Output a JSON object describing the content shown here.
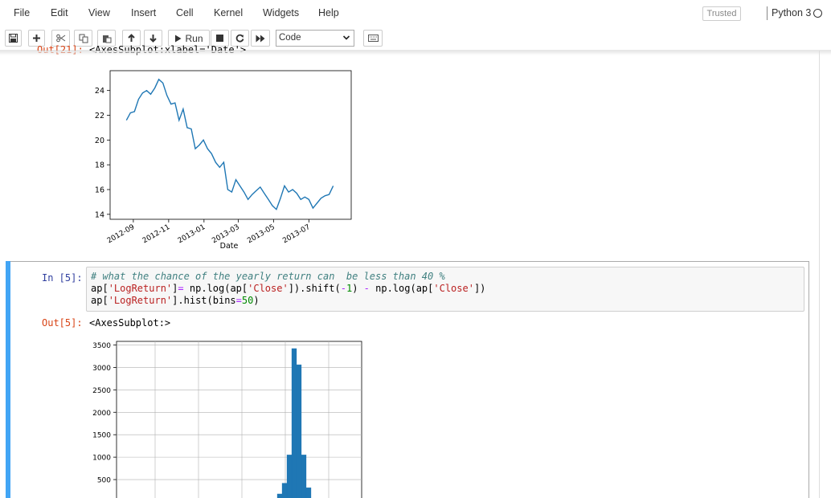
{
  "menubar": {
    "items": [
      "File",
      "Edit",
      "View",
      "Insert",
      "Cell",
      "Kernel",
      "Widgets",
      "Help"
    ],
    "trusted_label": "Trusted",
    "kernel_name": "Python 3"
  },
  "toolbar": {
    "run_label": "Run",
    "cell_type": "Code",
    "buttons": [
      "save-icon",
      "plus-icon",
      "cut-icon",
      "copy-icon",
      "paste-icon",
      "arrow-up-icon",
      "arrow-down-icon",
      "run-icon",
      "stop-icon",
      "restart-icon",
      "fast-forward-icon",
      "keyboard-icon"
    ]
  },
  "cells": {
    "out21": {
      "prompt": "Out[21]:",
      "text": "<AxesSubplot:xlabel='Date'>"
    },
    "in5": {
      "prompt": "In [5]:",
      "code": [
        "# what the chance of the yearly return can  be less than 40 %",
        "ap['LogReturn']= np.log(ap['Close']).shift(-1) - np.log(ap['Close'])",
        "ap['LogReturn'].hist(bins=50)"
      ]
    },
    "out5": {
      "prompt": "Out[5]:",
      "text": "<AxesSubplot:>"
    }
  },
  "chart_data": [
    {
      "type": "line",
      "xlabel": "Date",
      "ylabel": "",
      "title": "",
      "xticks": [
        "2012-09",
        "2012-11",
        "2013-01",
        "2013-03",
        "2013-05",
        "2013-07"
      ],
      "yticks": [
        14,
        16,
        18,
        20,
        22,
        24
      ],
      "ylim": [
        13.6,
        25.6
      ],
      "grid": false,
      "color": "#1f77b4",
      "x": [
        "2012-08-20",
        "2012-08-27",
        "2012-09-03",
        "2012-09-10",
        "2012-09-17",
        "2012-09-24",
        "2012-10-01",
        "2012-10-08",
        "2012-10-15",
        "2012-10-22",
        "2012-10-29",
        "2012-11-05",
        "2012-11-12",
        "2012-11-19",
        "2012-11-26",
        "2012-12-03",
        "2012-12-10",
        "2012-12-17",
        "2012-12-24",
        "2012-12-31",
        "2013-01-07",
        "2013-01-14",
        "2013-01-21",
        "2013-01-28",
        "2013-02-04",
        "2013-02-11",
        "2013-02-18",
        "2013-02-25",
        "2013-03-04",
        "2013-03-11",
        "2013-03-18",
        "2013-03-25",
        "2013-04-01",
        "2013-04-08",
        "2013-04-15",
        "2013-04-22",
        "2013-04-29",
        "2013-05-06",
        "2013-05-13",
        "2013-05-20",
        "2013-05-27",
        "2013-06-03",
        "2013-06-10",
        "2013-06-17",
        "2013-06-24",
        "2013-07-01",
        "2013-07-08",
        "2013-07-15",
        "2013-07-22",
        "2013-07-29",
        "2013-08-05",
        "2013-08-12"
      ],
      "values": [
        21.6,
        22.2,
        22.3,
        23.3,
        23.8,
        24.0,
        23.7,
        24.2,
        24.9,
        24.6,
        23.6,
        22.9,
        23.0,
        21.6,
        22.5,
        21.0,
        20.9,
        19.3,
        19.6,
        20.0,
        19.3,
        18.9,
        18.2,
        17.8,
        18.2,
        16.0,
        15.8,
        16.8,
        16.3,
        15.8,
        15.2,
        15.6,
        15.9,
        16.2,
        15.7,
        15.2,
        14.7,
        14.4,
        15.3,
        16.3,
        15.8,
        16.0,
        15.7,
        15.2,
        15.4,
        15.2,
        14.5,
        14.9,
        15.3,
        15.5,
        15.6,
        16.3
      ]
    },
    {
      "type": "bar",
      "title": "",
      "xlabel": "",
      "ylabel": "",
      "yticks": [
        500,
        1000,
        1500,
        2000,
        2500,
        3000,
        3500
      ],
      "ylim": [
        0,
        3580
      ],
      "grid": true,
      "color": "#1f77b4",
      "bins_shown": [
        "b1",
        "b2",
        "b3",
        "b4",
        "b5",
        "b6",
        "b7",
        "b8",
        "b9",
        "b10"
      ],
      "values": [
        15,
        60,
        180,
        420,
        1050,
        3420,
        3060,
        1050,
        320,
        60
      ]
    }
  ]
}
